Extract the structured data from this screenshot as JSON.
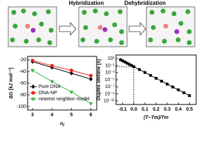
{
  "diagram": {
    "labels": [
      "Hybridization",
      "Dehybridization"
    ]
  },
  "chart_data": [
    {
      "type": "line",
      "y_label": "ΔG [kJ mol⁻¹]",
      "x_label": "n",
      "x_label_sub": "l",
      "x": [
        3,
        4,
        5,
        6
      ],
      "xlim": [
        2.75,
        6.3
      ],
      "xticks": [
        3,
        4,
        5,
        6
      ],
      "ylim": [
        -106,
        -14
      ],
      "yticks": [
        -20,
        -40,
        -60,
        -80,
        -100
      ],
      "legend": "lower left",
      "series": [
        {
          "name": "Pure DNA",
          "color": "#000000",
          "marker": "diamond",
          "values": [
            -23,
            -33,
            -43,
            -53
          ]
        },
        {
          "name": "DNA-NP",
          "color": "#e8231e",
          "marker": "circle",
          "values": [
            -21,
            -30,
            -38,
            -47
          ]
        },
        {
          "name": "nearest neighbor model",
          "color": "#3cb44b",
          "marker": "triangle",
          "values": [
            -38,
            -57,
            -75,
            -95
          ]
        }
      ]
    },
    {
      "type": "line",
      "y_label": "Duplex lifetime [s]",
      "x_label": "(T−Tm)/Tm",
      "log_y": true,
      "x": [
        -0.12,
        -0.1,
        -0.08,
        -0.06,
        -0.04,
        -0.02,
        0,
        0.05,
        0.1,
        0.15,
        0.2,
        0.25,
        0.3,
        0.35,
        0.4,
        0.45,
        0.5
      ],
      "xlim": [
        -0.16,
        0.56
      ],
      "xticks": [
        -0.1,
        {
          "value": 0,
          "label": "0.0"
        },
        0.1,
        0.2,
        0.3,
        0.4,
        0.5
      ],
      "ylim": [
        1e-12,
        100.0
      ],
      "yticks": [
        {
          "value": 10,
          "label": "10¹"
        },
        {
          "value": 0.1,
          "label": "10⁻¹"
        },
        {
          "value": 0.001,
          "label": "10⁻³"
        },
        {
          "value": 1e-05,
          "label": "10⁻⁵"
        },
        {
          "value": 1e-07,
          "label": "10⁻⁷"
        },
        {
          "value": 1e-09,
          "label": "10⁻⁹"
        },
        {
          "value": 1e-11,
          "label": "10⁻¹¹"
        }
      ],
      "guide": {
        "x": 0,
        "y": 0.05
      },
      "series": [
        {
          "color": "#000000",
          "marker": "square",
          "values": [
            4.66,
            2.19,
            1.03,
            0.483,
            0.227,
            0.107,
            0.05,
            0.0076,
            0.00115,
            0.00017,
            2.6e-05,
            4e-06,
            6e-07,
            9.1e-08,
            1.4e-08,
            2.1e-09,
            3.2e-10
          ]
        }
      ]
    }
  ]
}
